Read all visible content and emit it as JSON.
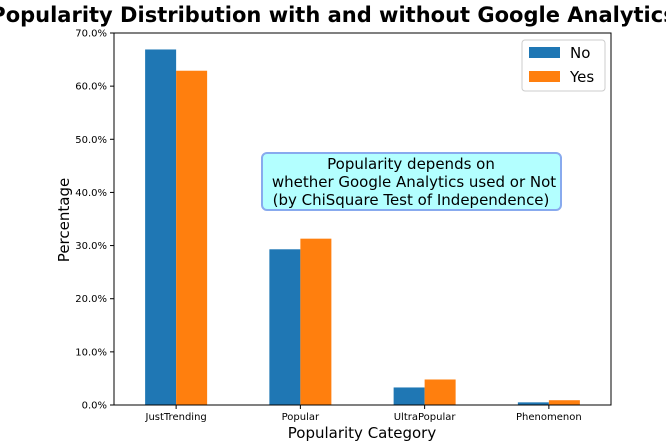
{
  "chart_data": {
    "type": "bar",
    "title": "Popularity Distribution with and without Google Analytics",
    "xlabel": "Popularity Category",
    "ylabel": "Percentage",
    "categories": [
      "JustTrending",
      "Popular",
      "UltraPopular",
      "Phenomenon"
    ],
    "series": [
      {
        "name": "No",
        "color": "#1f77b4",
        "values": [
          66.9,
          29.3,
          3.3,
          0.5
        ]
      },
      {
        "name": "Yes",
        "color": "#ff7f0e",
        "values": [
          62.9,
          31.3,
          4.8,
          0.9
        ]
      }
    ],
    "ylim": [
      0,
      70
    ],
    "yticks": [
      0,
      10,
      20,
      30,
      40,
      50,
      60,
      70
    ],
    "ytick_labels": [
      "0.0%",
      "10.0%",
      "20.0%",
      "30.0%",
      "40.0%",
      "50.0%",
      "60.0%",
      "70.0%"
    ],
    "grid": false,
    "legend": {
      "position": "top-right",
      "entries": [
        "No",
        "Yes"
      ]
    },
    "annotation": {
      "lines": [
        "Popularity depends on",
        "whether Google Analytics used or Not",
        "(by ChiSquare Test of Independence)"
      ],
      "background": "#b3ffff",
      "border": "#88aaee"
    }
  }
}
